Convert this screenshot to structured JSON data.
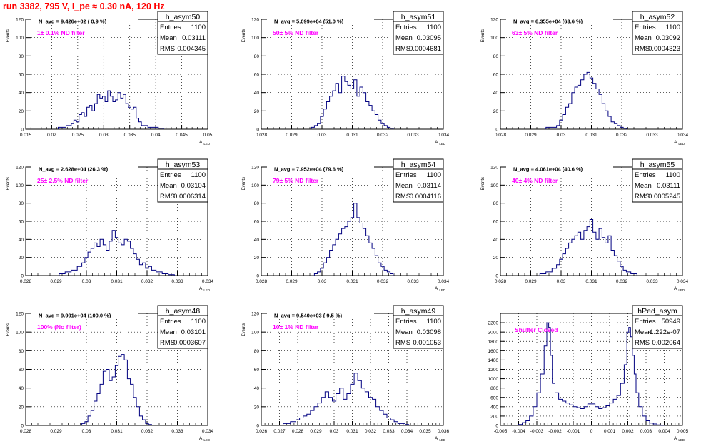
{
  "page": {
    "title": "run 3382,   795 V, I_pe ≈ 0.30 nA, 120 Hz"
  },
  "chart_data": [
    {
      "type": "histogram",
      "name": "h_asym50",
      "xlabel": "A_LED",
      "ylabel": "Events",
      "xlim": [
        0.015,
        0.05
      ],
      "ylim": [
        0,
        120
      ],
      "xticks": [
        "0.015",
        "0.02",
        "0.025",
        "0.03",
        "0.035",
        "0.04",
        "0.045",
        "0.05"
      ],
      "yticks": [
        "0",
        "20",
        "40",
        "60",
        "80",
        "100",
        "120"
      ],
      "stats": {
        "Entries": "1100",
        "Mean": "0.03111",
        "RMS": "0.004345"
      },
      "n_avg": "N_avg = 9.426e+02 ( 0.9 %)",
      "filter": "1± 0.1% ND filter",
      "bins_x": [
        0.022,
        0.0235,
        0.024,
        0.0245,
        0.025,
        0.0255,
        0.026,
        0.0265,
        0.027,
        0.0275,
        0.028,
        0.0285,
        0.029,
        0.0295,
        0.03,
        0.0305,
        0.031,
        0.0315,
        0.032,
        0.0325,
        0.033,
        0.0335,
        0.034,
        0.0345,
        0.035,
        0.0355,
        0.036,
        0.0365,
        0.037,
        0.0375,
        0.038,
        0.039,
        0.04,
        0.041
      ],
      "counts": [
        2,
        4,
        6,
        10,
        8,
        16,
        18,
        14,
        24,
        26,
        20,
        28,
        38,
        34,
        36,
        30,
        42,
        36,
        30,
        32,
        40,
        34,
        38,
        28,
        24,
        22,
        24,
        12,
        8,
        4,
        4,
        2,
        2,
        1
      ]
    },
    {
      "type": "histogram",
      "name": "h_asym51",
      "xlabel": "A_LED",
      "ylabel": "Events",
      "xlim": [
        0.028,
        0.034
      ],
      "ylim": [
        0,
        120
      ],
      "xticks": [
        "0.028",
        "0.029",
        "0.03",
        "0.031",
        "0.032",
        "0.033",
        "0.034"
      ],
      "yticks": [
        "0",
        "20",
        "40",
        "60",
        "80",
        "100",
        "120"
      ],
      "stats": {
        "Entries": "1100",
        "Mean": "0.03095",
        "RMS": "0.0004681"
      },
      "n_avg": "N_avg = 5.099e+04 (51.0 %)",
      "filter": "50± 5% ND filter",
      "bins_x": [
        0.0297,
        0.0298,
        0.0299,
        0.03,
        0.0301,
        0.0302,
        0.0303,
        0.0304,
        0.0305,
        0.0306,
        0.0307,
        0.0308,
        0.0309,
        0.031,
        0.0311,
        0.0312,
        0.0313,
        0.0314,
        0.0315,
        0.0316,
        0.0317,
        0.0318,
        0.0319,
        0.032,
        0.0321,
        0.0322,
        0.0323
      ],
      "counts": [
        2,
        4,
        6,
        14,
        22,
        30,
        36,
        42,
        50,
        40,
        58,
        52,
        48,
        44,
        54,
        36,
        46,
        40,
        30,
        26,
        20,
        16,
        10,
        6,
        4,
        2,
        1
      ]
    },
    {
      "type": "histogram",
      "name": "h_asym52",
      "xlabel": "A_LED",
      "ylabel": "Events",
      "xlim": [
        0.028,
        0.034
      ],
      "ylim": [
        0,
        120
      ],
      "xticks": [
        "0.028",
        "0.029",
        "0.03",
        "0.031",
        "0.032",
        "0.033",
        "0.034"
      ],
      "yticks": [
        "0",
        "20",
        "40",
        "60",
        "80",
        "100",
        "120"
      ],
      "stats": {
        "Entries": "1100",
        "Mean": "0.03092",
        "RMS": "0.0004323"
      },
      "n_avg": "N_avg = 6.355e+04 (63.6 %)",
      "filter": "63± 5% ND filter",
      "bins_x": [
        0.0296,
        0.0298,
        0.0299,
        0.03,
        0.0301,
        0.0302,
        0.0303,
        0.0304,
        0.0305,
        0.0306,
        0.0307,
        0.0308,
        0.0309,
        0.031,
        0.0311,
        0.0312,
        0.0313,
        0.0314,
        0.0315,
        0.0316,
        0.0317,
        0.0318,
        0.0319,
        0.032,
        0.0321
      ],
      "counts": [
        2,
        2,
        4,
        10,
        16,
        24,
        28,
        40,
        46,
        48,
        54,
        60,
        62,
        56,
        50,
        44,
        38,
        28,
        20,
        14,
        8,
        6,
        4,
        2,
        1
      ]
    },
    {
      "type": "histogram",
      "name": "h_asym53",
      "xlabel": "A_LED",
      "ylabel": "Events",
      "xlim": [
        0.028,
        0.034
      ],
      "ylim": [
        0,
        120
      ],
      "xticks": [
        "0.028",
        "0.029",
        "0.03",
        "0.031",
        "0.032",
        "0.033",
        "0.034"
      ],
      "yticks": [
        "0",
        "20",
        "40",
        "60",
        "80",
        "100",
        "120"
      ],
      "stats": {
        "Entries": "1100",
        "Mean": "0.03104",
        "RMS": "0.0006314"
      },
      "n_avg": "N_avg = 2.628e+04 (26.3 %)",
      "filter": "25± 2.5% ND filter",
      "bins_x": [
        0.0292,
        0.0294,
        0.0296,
        0.0298,
        0.0299,
        0.03,
        0.0301,
        0.0302,
        0.0303,
        0.0304,
        0.0305,
        0.0306,
        0.0307,
        0.0308,
        0.0309,
        0.031,
        0.0311,
        0.0312,
        0.0313,
        0.0314,
        0.0315,
        0.0316,
        0.0317,
        0.0318,
        0.0319,
        0.032,
        0.0321,
        0.0322,
        0.0324,
        0.0326,
        0.0328
      ],
      "counts": [
        2,
        4,
        6,
        10,
        14,
        20,
        26,
        30,
        36,
        32,
        40,
        34,
        28,
        38,
        50,
        42,
        36,
        34,
        40,
        38,
        30,
        24,
        18,
        12,
        14,
        8,
        10,
        6,
        4,
        2,
        1
      ]
    },
    {
      "type": "histogram",
      "name": "h_asym54",
      "xlabel": "A_LED",
      "ylabel": "Events",
      "xlim": [
        0.028,
        0.034
      ],
      "ylim": [
        0,
        120
      ],
      "xticks": [
        "0.028",
        "0.029",
        "0.03",
        "0.031",
        "0.032",
        "0.033",
        "0.034"
      ],
      "yticks": [
        "0",
        "20",
        "40",
        "60",
        "80",
        "100",
        "120"
      ],
      "stats": {
        "Entries": "1100",
        "Mean": "0.03114",
        "RMS": "0.0004116"
      },
      "n_avg": "N_avg = 7.952e+04 (79.6 %)",
      "filter": "79± 5% ND filter",
      "bins_x": [
        0.0298,
        0.0299,
        0.03,
        0.0301,
        0.0302,
        0.0303,
        0.0304,
        0.0305,
        0.0306,
        0.0307,
        0.0308,
        0.0309,
        0.031,
        0.0311,
        0.0312,
        0.0313,
        0.0314,
        0.0315,
        0.0316,
        0.0317,
        0.0318,
        0.0319,
        0.032,
        0.0321,
        0.0322,
        0.0323
      ],
      "counts": [
        2,
        4,
        8,
        14,
        20,
        28,
        34,
        40,
        46,
        52,
        54,
        60,
        64,
        80,
        64,
        58,
        52,
        44,
        36,
        30,
        22,
        14,
        10,
        6,
        4,
        2
      ]
    },
    {
      "type": "histogram",
      "name": "h_asym55",
      "xlabel": "A_LED",
      "ylabel": "Events",
      "xlim": [
        0.028,
        0.034
      ],
      "ylim": [
        0,
        120
      ],
      "xticks": [
        "0.028",
        "0.029",
        "0.03",
        "0.031",
        "0.032",
        "0.033",
        "0.034"
      ],
      "yticks": [
        "0",
        "20",
        "40",
        "60",
        "80",
        "100",
        "120"
      ],
      "stats": {
        "Entries": "1100",
        "Mean": "0.03111",
        "RMS": "0.0005245"
      },
      "n_avg": "N_avg = 4.061e+04 (40.6 %)",
      "filter": "40± 4% ND filter",
      "bins_x": [
        0.0294,
        0.0296,
        0.0298,
        0.0299,
        0.03,
        0.0301,
        0.0302,
        0.0303,
        0.0304,
        0.0305,
        0.0306,
        0.0307,
        0.0308,
        0.0309,
        0.031,
        0.0311,
        0.0312,
        0.0313,
        0.0314,
        0.0315,
        0.0316,
        0.0317,
        0.0318,
        0.0319,
        0.032,
        0.0321,
        0.0322,
        0.0324
      ],
      "counts": [
        2,
        4,
        8,
        12,
        18,
        24,
        30,
        36,
        40,
        44,
        48,
        40,
        50,
        54,
        62,
        48,
        40,
        52,
        42,
        36,
        44,
        28,
        22,
        16,
        10,
        6,
        4,
        2
      ]
    },
    {
      "type": "histogram",
      "name": "h_asym48",
      "xlabel": "A_LED",
      "ylabel": "Events",
      "xlim": [
        0.028,
        0.034
      ],
      "ylim": [
        0,
        120
      ],
      "xticks": [
        "0.028",
        "0.029",
        "0.03",
        "0.031",
        "0.032",
        "0.033",
        "0.034"
      ],
      "yticks": [
        "0",
        "20",
        "40",
        "60",
        "80",
        "100",
        "120"
      ],
      "stats": {
        "Entries": "1100",
        "Mean": "0.03101",
        "RMS": "0.0003607"
      },
      "n_avg": "N_avg = 9.991e+04 (100.0 %)",
      "filter": "100% (No filter)",
      "bins_x": [
        0.0299,
        0.03,
        0.0301,
        0.0302,
        0.0303,
        0.0304,
        0.0305,
        0.0306,
        0.0307,
        0.0308,
        0.0309,
        0.031,
        0.0311,
        0.0312,
        0.0313,
        0.0314,
        0.0315,
        0.0316,
        0.0317,
        0.0318,
        0.0319,
        0.032,
        0.0321
      ],
      "counts": [
        2,
        4,
        10,
        16,
        26,
        34,
        44,
        58,
        60,
        48,
        52,
        64,
        74,
        76,
        70,
        50,
        44,
        30,
        20,
        10,
        6,
        2,
        1
      ]
    },
    {
      "type": "histogram",
      "name": "h_asym49",
      "xlabel": "A_LED",
      "ylabel": "Events",
      "xlim": [
        0.026,
        0.036
      ],
      "ylim": [
        0,
        120
      ],
      "xticks": [
        "0.026",
        "0.027",
        "0.028",
        "0.029",
        "0.03",
        "0.031",
        "0.032",
        "0.033",
        "0.034",
        "0.035",
        "0.036"
      ],
      "yticks": [
        "0",
        "20",
        "40",
        "60",
        "80",
        "100",
        "120"
      ],
      "stats": {
        "Entries": "1100",
        "Mean": "0.03098",
        "RMS": "0.001053"
      },
      "n_avg": "N_avg = 9.540e+03 ( 9.5 %)",
      "filter": "10± 1% ND filter",
      "bins_x": [
        0.0274,
        0.0278,
        0.028,
        0.0282,
        0.0284,
        0.0286,
        0.0288,
        0.029,
        0.0292,
        0.0294,
        0.0296,
        0.0298,
        0.03,
        0.0302,
        0.0304,
        0.0306,
        0.0308,
        0.031,
        0.0312,
        0.0314,
        0.0316,
        0.0318,
        0.032,
        0.0322,
        0.0324,
        0.0326,
        0.0328,
        0.033,
        0.0332,
        0.0334,
        0.0336,
        0.0338,
        0.034
      ],
      "counts": [
        2,
        4,
        6,
        8,
        10,
        12,
        16,
        20,
        24,
        30,
        36,
        30,
        26,
        34,
        40,
        28,
        34,
        44,
        56,
        48,
        40,
        36,
        30,
        28,
        20,
        16,
        12,
        8,
        6,
        4,
        2,
        2,
        1
      ]
    },
    {
      "type": "histogram",
      "name": "hPed_asym",
      "xlabel": "A_LED",
      "ylabel": "",
      "xlim": [
        -0.005,
        0.005
      ],
      "ylim": [
        0,
        2400
      ],
      "xticks": [
        "-0.005",
        "-0.004",
        "-0.003",
        "-0.002",
        "-0.001",
        "0",
        "0.001",
        "0.002",
        "0.003",
        "0.004",
        "0.005"
      ],
      "yticks": [
        "0",
        "200",
        "400",
        "600",
        "800",
        "1000",
        "1200",
        "1400",
        "1600",
        "1800",
        "2000",
        "2200"
      ],
      "stats": {
        "Entries": "50949",
        "Mean": "-1.222e-07",
        "RMS": "0.002064"
      },
      "n_avg": "",
      "filter": "Shutter Closed",
      "bins_x": [
        -0.0039,
        -0.0037,
        -0.0035,
        -0.0033,
        -0.0031,
        -0.0029,
        -0.0027,
        -0.0025,
        -0.0024,
        -0.0023,
        -0.0022,
        -0.0021,
        -0.0019,
        -0.0017,
        -0.0015,
        -0.0013,
        -0.0011,
        -0.0009,
        -0.0007,
        -0.0005,
        -0.0003,
        -0.0001,
        0.0001,
        0.0003,
        0.0005,
        0.0007,
        0.0009,
        0.0011,
        0.0013,
        0.0015,
        0.0017,
        0.0019,
        0.002,
        0.0021,
        0.0022,
        0.0023,
        0.0024,
        0.0025,
        0.0027,
        0.0029,
        0.0031,
        0.0033,
        0.0035,
        0.0037,
        0.0039
      ],
      "counts": [
        20,
        60,
        100,
        200,
        400,
        700,
        1100,
        1700,
        2200,
        2100,
        1500,
        900,
        700,
        560,
        520,
        480,
        440,
        400,
        380,
        360,
        400,
        460,
        460,
        400,
        360,
        380,
        420,
        480,
        560,
        640,
        900,
        1300,
        2000,
        2100,
        1900,
        1500,
        1100,
        700,
        400,
        200,
        100,
        50,
        30,
        10,
        5
      ]
    }
  ]
}
